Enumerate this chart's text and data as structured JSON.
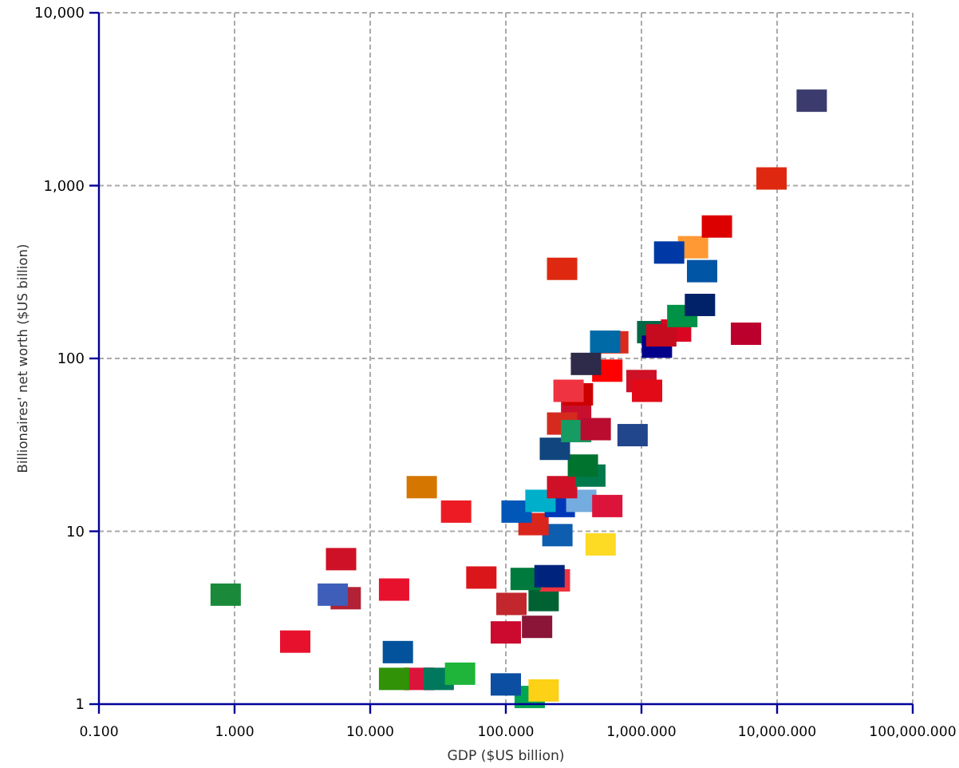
{
  "chart_data": {
    "type": "scatter",
    "xlabel": "GDP ($US billion)",
    "ylabel": "Billionaires' net worth ($US billion)",
    "x": [
      0.86,
      6.1,
      6.6,
      5.3,
      2.8,
      15,
      66,
      16,
      23,
      15,
      32,
      46,
      150,
      100,
      190,
      100,
      170,
      110,
      190,
      230,
      140,
      210,
      240,
      160,
      500,
      43,
      24,
      250,
      360,
      560,
      120,
      180,
      260,
      420,
      370,
      230,
      330,
      260,
      330,
      460,
      860,
      340,
      290,
      1000,
      1100,
      620,
      540,
      560,
      390,
      1200,
      1300,
      1800,
      1400,
      2000,
      2700,
      5900,
      260,
      2800,
      2400,
      1600,
      3600,
      9100,
      18000
    ],
    "values": [
      4.3,
      6.9,
      4.1,
      4.3,
      2.3,
      4.6,
      5.4,
      2.0,
      1.4,
      1.4,
      1.4,
      1.5,
      1.1,
      1.3,
      1.2,
      2.6,
      2.8,
      3.8,
      4.0,
      5.2,
      5.3,
      5.5,
      9.5,
      11,
      8.4,
      13,
      18,
      14,
      15,
      14,
      13,
      15,
      18,
      21,
      24,
      30,
      49,
      42,
      38,
      39,
      36,
      62,
      65,
      74,
      65,
      124,
      125,
      85,
      93,
      142,
      117,
      145,
      136,
      176,
      204,
      139,
      330,
      320,
      440,
      410,
      580,
      1100,
      3100
    ],
    "colors": [
      "#1a8a3a",
      "#ce1126",
      "#b22234",
      "#3e5eb9",
      "#e8112d",
      "#e8112d",
      "#db161b",
      "#02529c",
      "#dc143c",
      "#319208",
      "#00785e",
      "#1eb53a",
      "#00a651",
      "#0b4ea2",
      "#fcd116",
      "#cc092f",
      "#8a1538",
      "#c1272d",
      "#006233",
      "#ef3340",
      "#007a3d",
      "#00247d",
      "#0d5eaf",
      "#da251d",
      "#fdda24",
      "#ed1c24",
      "#d47600",
      "#0038b8",
      "#74acdf",
      "#dc143c",
      "#0057b7",
      "#00afca",
      "#ce1126",
      "#007a4d",
      "#00732f",
      "#11457e",
      "#c8102e",
      "#d52b1e",
      "#169b62",
      "#ba0c2f",
      "#21468b",
      "#cc0001",
      "#ef3340",
      "#ce1126",
      "#e30a17",
      "#da291c",
      "#006aa7",
      "#ff0000",
      "#2d2a4a",
      "#006847",
      "#00008b",
      "#d80621",
      "#c60b1e",
      "#009246",
      "#012169",
      "#bc002d",
      "#de2910",
      "#0055a4",
      "#ff9933",
      "#0039a6",
      "#dd0000",
      "#de2910",
      "#3c3b6e"
    ],
    "xlim": [
      0.1,
      100000
    ],
    "ylim": [
      1,
      10000
    ],
    "xticks": [
      {
        "value": 0.1,
        "label": "0.100"
      },
      {
        "value": 1,
        "label": "1.000"
      },
      {
        "value": 10,
        "label": "10.000"
      },
      {
        "value": 100,
        "label": "100.000"
      },
      {
        "value": 1000,
        "label": "1,000.000"
      },
      {
        "value": 10000,
        "label": "10,000.000"
      },
      {
        "value": 100000,
        "label": "100,000.000"
      }
    ],
    "yticks": [
      1,
      10,
      100,
      {
        "value": 1000,
        "label": "1,000"
      },
      {
        "value": 10000,
        "label": "10,000"
      }
    ],
    "log": "xy",
    "grid": true,
    "marker": "square"
  }
}
